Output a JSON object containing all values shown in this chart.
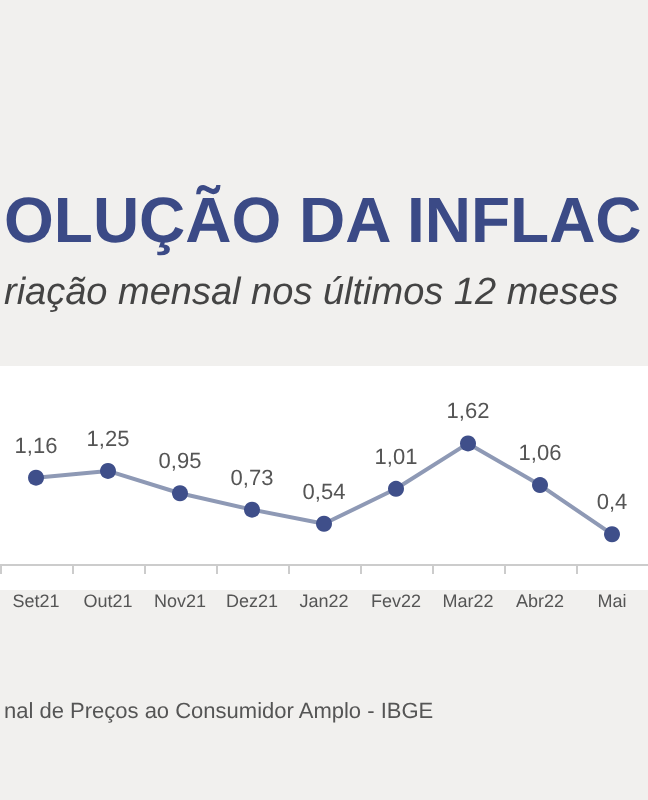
{
  "chart_data": {
    "type": "line",
    "title": "OLUÇÃO DA INFLAC",
    "subtitle": "riação mensal nos últimos 12 meses",
    "annotations": [
      "nal de Preços ao Consumidor Amplo - IBGE"
    ],
    "categories": [
      "Set21",
      "Out21",
      "Nov21",
      "Dez21",
      "Jan22",
      "Fev22",
      "Mar22",
      "Abr22",
      "Mai"
    ],
    "series": [
      {
        "color": "#8e99b5",
        "values": [
          1.16,
          1.25,
          0.95,
          0.73,
          0.54,
          1.01,
          1.62,
          1.06,
          0.4
        ],
        "value_labels": [
          "1,16",
          "1,25",
          "0,95",
          "0,73",
          "0,54",
          "1,01",
          "1,62",
          "1,06",
          "0,4"
        ]
      }
    ],
    "marker": "circle"
  }
}
